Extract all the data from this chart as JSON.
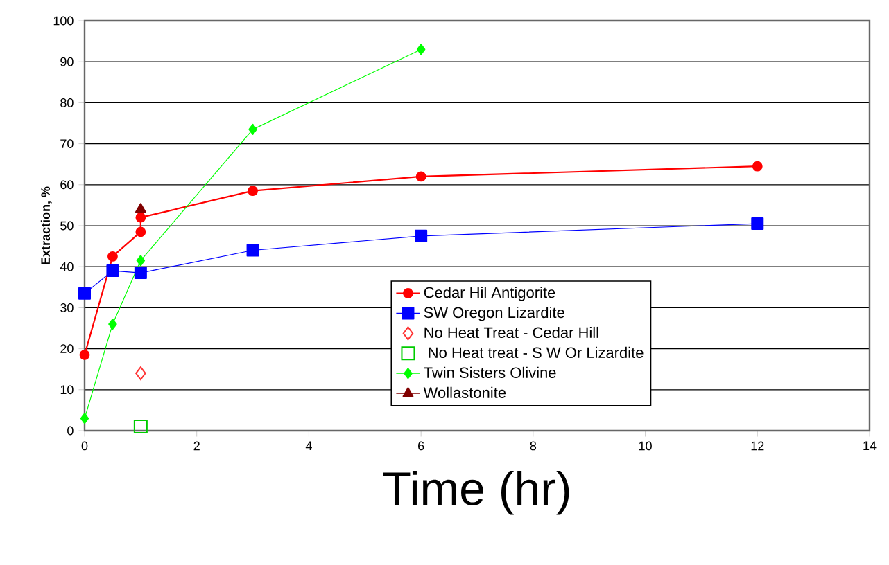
{
  "chart_data": {
    "type": "line",
    "xlabel": "Time (hr)",
    "ylabel": "Extraction, %",
    "xlim": [
      0,
      14
    ],
    "xticks": [
      0,
      2,
      4,
      6,
      8,
      10,
      12,
      14
    ],
    "ylim": [
      0,
      100
    ],
    "yticks": [
      0,
      10,
      20,
      30,
      40,
      50,
      60,
      70,
      80,
      90,
      100
    ],
    "grid": "y",
    "legend": "right",
    "series": [
      {
        "name": "Cedar Hil Antigorite",
        "color": "#ff0000",
        "marker": "circle",
        "x": [
          0,
          0.5,
          1,
          1,
          3,
          6,
          12
        ],
        "values": [
          18.5,
          42.5,
          48.5,
          52,
          58.5,
          62,
          64.5
        ]
      },
      {
        "name": "SW Oregon Lizardite",
        "color": "#0000ff",
        "marker": "square",
        "x": [
          0,
          0.5,
          1,
          3,
          6,
          12
        ],
        "values": [
          33.5,
          39,
          38.5,
          44,
          47.5,
          50.5
        ]
      },
      {
        "name": "No Heat Treat - Cedar Hill",
        "type": "scatter",
        "color": "#ff3333",
        "marker": "diamond",
        "x": [
          1
        ],
        "values": [
          14
        ]
      },
      {
        "name": " No Heat treat - S W Or Lizardite",
        "type": "scatter",
        "color": "#00cc00",
        "marker": "square",
        "x": [
          1
        ],
        "values": [
          1
        ]
      },
      {
        "name": "Twin Sisters Olivine",
        "color": "#00ff00",
        "marker": "diamond",
        "x": [
          0,
          0.5,
          1,
          3,
          6
        ],
        "values": [
          3,
          26,
          41.5,
          73.5,
          93
        ]
      },
      {
        "name": "Wollastonite",
        "color": "#800000",
        "marker": "triangle",
        "x": [
          1
        ],
        "values": [
          54
        ]
      }
    ]
  }
}
